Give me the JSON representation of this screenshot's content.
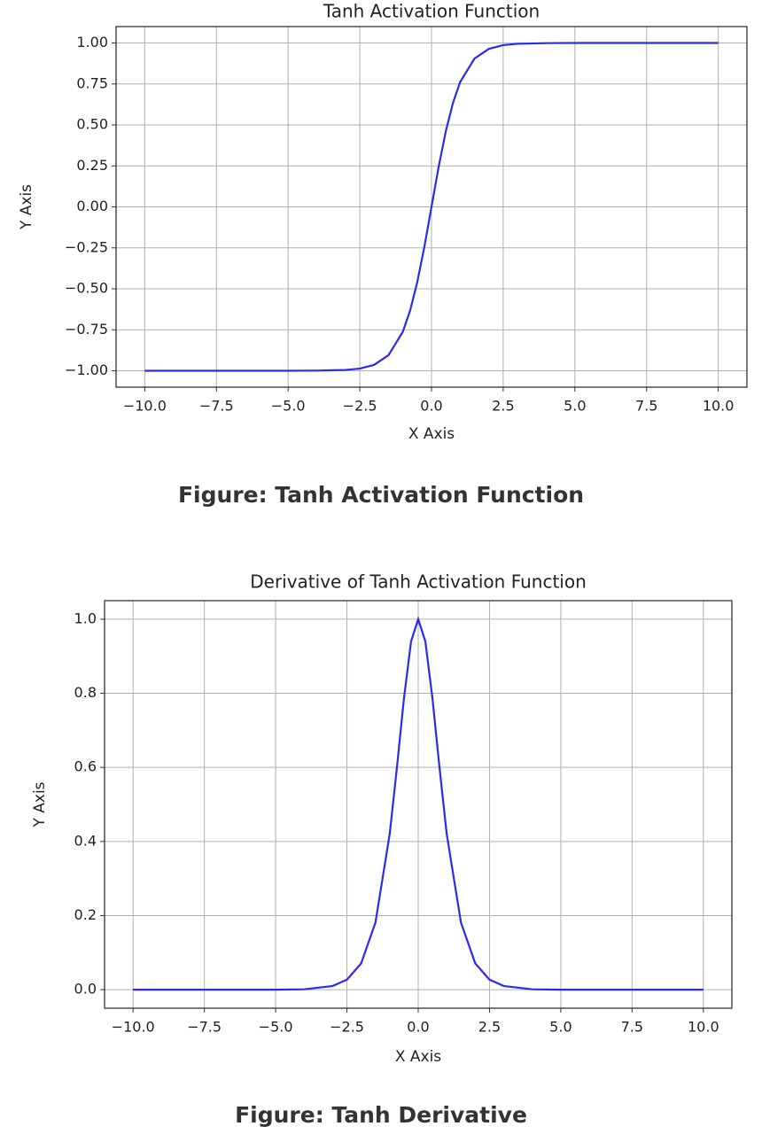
{
  "chart_data": [
    {
      "type": "line",
      "title": "Tanh Activation Function",
      "xlabel": "X Axis",
      "ylabel": "Y Axis",
      "caption": "Figure: Tanh Activation Function",
      "x": [
        -10,
        -7.5,
        -5,
        -4,
        -3,
        -2.5,
        -2,
        -1.5,
        -1,
        -0.75,
        -0.5,
        -0.25,
        0,
        0.25,
        0.5,
        0.75,
        1,
        1.5,
        2,
        2.5,
        3,
        4,
        5,
        7.5,
        10
      ],
      "series": [
        {
          "color": "#2b2bf0",
          "values": [
            -1,
            -1,
            -1,
            -0.999,
            -0.995,
            -0.987,
            -0.964,
            -0.905,
            -0.762,
            -0.635,
            -0.462,
            -0.245,
            0,
            0.245,
            0.462,
            0.635,
            0.762,
            0.905,
            0.964,
            0.987,
            0.995,
            0.999,
            1,
            1,
            1
          ]
        }
      ],
      "xlim": [
        -11,
        11
      ],
      "ylim": [
        -1.1,
        1.1
      ],
      "xticks": [
        {
          "value": -10,
          "label": "−10.0"
        },
        {
          "value": -7.5,
          "label": "−7.5"
        },
        {
          "value": -5,
          "label": "−5.0"
        },
        {
          "value": -2.5,
          "label": "−2.5"
        },
        {
          "value": 0,
          "label": "0.0"
        },
        2.5,
        {
          "value": 5,
          "label": "5.0"
        },
        7.5,
        {
          "value": 10,
          "label": "10.0"
        }
      ],
      "yticks": [
        {
          "value": 1,
          "label": "1.00"
        },
        {
          "value": 0.75,
          "label": "0.75"
        },
        {
          "value": 0.5,
          "label": "0.50"
        },
        {
          "value": 0.25,
          "label": "0.25"
        },
        {
          "value": 0,
          "label": "0.00"
        },
        {
          "value": -0.25,
          "label": "−0.25"
        },
        {
          "value": -0.5,
          "label": "−0.50"
        },
        {
          "value": -0.75,
          "label": "−0.75"
        },
        {
          "value": -1,
          "label": "−1.00"
        }
      ],
      "grid": true
    },
    {
      "type": "line",
      "title": "Derivative of Tanh Activation Function",
      "xlabel": "X Axis",
      "ylabel": "Y Axis",
      "caption": "Figure: Tanh Derivative",
      "x": [
        -10,
        -7.5,
        -5,
        -4,
        -3,
        -2.5,
        -2,
        -1.5,
        -1,
        -0.75,
        -0.5,
        -0.25,
        0,
        0.25,
        0.5,
        0.75,
        1,
        1.5,
        2,
        2.5,
        3,
        4,
        5,
        7.5,
        10
      ],
      "series": [
        {
          "color": "#2b2bf0",
          "values": [
            0,
            0,
            0,
            0.001,
            0.01,
            0.027,
            0.071,
            0.181,
            0.42,
            0.597,
            0.786,
            0.94,
            1,
            0.94,
            0.786,
            0.597,
            0.42,
            0.181,
            0.071,
            0.027,
            0.01,
            0.001,
            0,
            0,
            0
          ]
        }
      ],
      "xlim": [
        -11,
        11
      ],
      "ylim": [
        -0.05,
        1.05
      ],
      "xticks": [
        {
          "value": -10,
          "label": "−10.0"
        },
        {
          "value": -7.5,
          "label": "−7.5"
        },
        {
          "value": -5,
          "label": "−5.0"
        },
        {
          "value": -2.5,
          "label": "−2.5"
        },
        {
          "value": 0,
          "label": "0.0"
        },
        2.5,
        {
          "value": 5,
          "label": "5.0"
        },
        7.5,
        {
          "value": 10,
          "label": "10.0"
        }
      ],
      "yticks": [
        {
          "value": 1,
          "label": "1.0"
        },
        {
          "value": 0.8,
          "label": "0.8"
        },
        {
          "value": 0.6,
          "label": "0.6"
        },
        {
          "value": 0.4,
          "label": "0.4"
        },
        {
          "value": 0.2,
          "label": "0.2"
        },
        {
          "value": 0,
          "label": "0.0"
        }
      ],
      "grid": true
    }
  ]
}
